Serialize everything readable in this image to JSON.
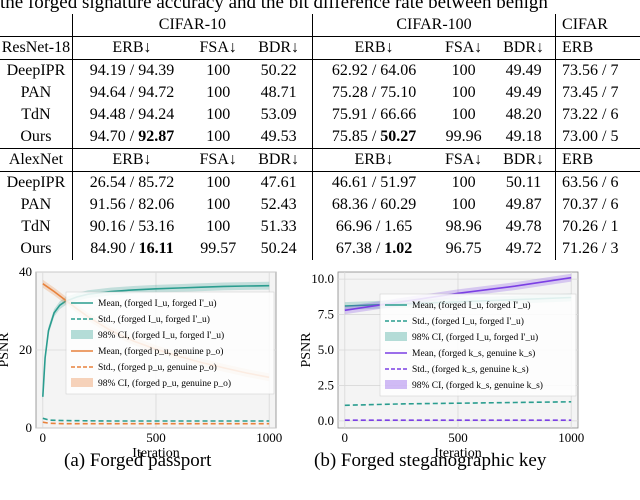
{
  "top_caption": "the forged signature accuracy and the bit difference rate between benign",
  "table": {
    "datasets": [
      "CIFAR-10",
      "CIFAR-100",
      "CIFAR"
    ],
    "sections": [
      {
        "model": "ResNet-18",
        "headers": [
          "ERB↓",
          "FSA↓",
          "BDR↓",
          "ERB↓",
          "FSA↓",
          "BDR↓",
          "ERB"
        ],
        "rows": [
          {
            "method": "DeepIPR",
            "c10_erb_a": "94.19 / ",
            "c10_erb_b": "94.39",
            "c10_fsa": "100",
            "c10_bdr": "50.22",
            "c100_erb_a": "62.92 / ",
            "c100_erb_b": "64.06",
            "c100_fsa": "100",
            "c100_bdr": "49.49",
            "c3": "73.56 / 7"
          },
          {
            "method": "PAN",
            "c10_erb_a": "94.64 / ",
            "c10_erb_b": "94.72",
            "c10_fsa": "100",
            "c10_bdr": "48.71",
            "c100_erb_a": "75.28 / ",
            "c100_erb_b": "75.10",
            "c100_fsa": "100",
            "c100_bdr": "49.49",
            "c3": "73.45 / 7"
          },
          {
            "method": "TdN",
            "c10_erb_a": "94.48 / ",
            "c10_erb_b": "94.24",
            "c10_fsa": "100",
            "c10_bdr": "53.09",
            "c100_erb_a": "75.91 / ",
            "c100_erb_b": "66.66",
            "c100_fsa": "100",
            "c100_bdr": "48.20",
            "c3": "73.22 / 6"
          },
          {
            "method": "Ours",
            "c10_erb_a": "94.70 / ",
            "c10_erb_b": "92.87",
            "c10_fsa": "100",
            "c10_bdr": "49.53",
            "c100_erb_a": "75.85 / ",
            "c100_erb_b": "50.27",
            "c100_fsa": "99.96",
            "c100_bdr": "49.18",
            "c3": "73.00 / 5"
          }
        ]
      },
      {
        "model": "AlexNet",
        "headers": [
          "ERB↓",
          "FSA↓",
          "BDR↓",
          "ERB↓",
          "FSA↓",
          "BDR↓",
          "ERB"
        ],
        "rows": [
          {
            "method": "DeepIPR",
            "c10_erb_a": "26.54 / ",
            "c10_erb_b": "85.72",
            "c10_fsa": "100",
            "c10_bdr": "47.61",
            "c100_erb_a": "46.61 / ",
            "c100_erb_b": "51.97",
            "c100_fsa": "100",
            "c100_bdr": "50.11",
            "c3": "63.56 / 6"
          },
          {
            "method": "PAN",
            "c10_erb_a": "91.56 / ",
            "c10_erb_b": "82.06",
            "c10_fsa": "100",
            "c10_bdr": "52.43",
            "c100_erb_a": "68.36 / ",
            "c100_erb_b": "60.29",
            "c100_fsa": "100",
            "c100_bdr": "49.87",
            "c3": "70.37 / 6"
          },
          {
            "method": "TdN",
            "c10_erb_a": "90.16 / ",
            "c10_erb_b": "53.16",
            "c10_fsa": "100",
            "c10_bdr": "51.33",
            "c100_erb_a": "66.96 / ",
            "c100_erb_b": "1.65",
            "c100_fsa": "98.96",
            "c100_bdr": "49.78",
            "c3": "70.26 / 1"
          },
          {
            "method": "Ours",
            "c10_erb_a": "84.90 / ",
            "c10_erb_b": "16.11",
            "c10_fsa": "99.57",
            "c10_bdr": "50.24",
            "c100_erb_a": "67.38 / ",
            "c100_erb_b": "1.02",
            "c100_fsa": "96.75",
            "c100_bdr": "49.72",
            "c3": "71.26 / 3"
          }
        ]
      }
    ]
  },
  "chart_data": [
    {
      "type": "line",
      "xlabel": "Iteration",
      "ylabel": "PSNR",
      "xlim": [
        -30,
        1030
      ],
      "ylim": [
        0,
        40
      ],
      "xticks": [
        0,
        500,
        1000
      ],
      "yticks": [
        0,
        20,
        40
      ],
      "grid": true,
      "legend_position": "right",
      "series": [
        {
          "name": "Mean, (forged I_u, forged I'_u)",
          "color": "#2a9d8f",
          "style": "solid",
          "x": [
            0,
            10,
            25,
            50,
            75,
            100,
            150,
            200,
            300,
            400,
            500,
            600,
            700,
            800,
            900,
            1000
          ],
          "y": [
            8,
            18,
            25,
            29.5,
            31.5,
            32.5,
            33.6,
            34.3,
            35.0,
            35.4,
            35.7,
            35.9,
            36.1,
            36.3,
            36.4,
            36.5
          ]
        },
        {
          "name": "Std., (forged I_u, forged I'_u)",
          "color": "#2a9d8f",
          "style": "dashed",
          "x": [
            0,
            30,
            100,
            300,
            600,
            1000
          ],
          "y": [
            2.5,
            2.0,
            1.9,
            1.8,
            1.8,
            1.8
          ]
        },
        {
          "name": "98% CI, (forged I_u, forged I'_u)",
          "color": "#2a9d8f",
          "style": "band"
        },
        {
          "name": "Mean, (forged p_u, genuine p_o)",
          "color": "#e8823c",
          "style": "solid",
          "x": [
            0,
            20,
            50,
            100,
            150,
            200,
            300,
            400,
            500,
            600,
            700,
            800,
            900,
            1000
          ],
          "y": [
            37,
            36.2,
            35.0,
            32.8,
            30.6,
            28.5,
            25.0,
            22.3,
            20.2,
            18.4,
            16.8,
            15.4,
            14.1,
            13.0
          ]
        },
        {
          "name": "Std., (forged p_u, genuine p_o)",
          "color": "#e8823c",
          "style": "dashed",
          "x": [
            0,
            30,
            100,
            300,
            600,
            1000
          ],
          "y": [
            1.5,
            1.2,
            1.1,
            1.1,
            1.1,
            1.1
          ]
        },
        {
          "name": "98% CI, (forged p_u, genuine p_o)",
          "color": "#e8823c",
          "style": "band"
        }
      ]
    },
    {
      "type": "line",
      "xlabel": "Iteration",
      "ylabel": "PSNR",
      "xlim": [
        -30,
        1030
      ],
      "ylim": [
        -0.5,
        10.5
      ],
      "xticks": [
        0,
        500,
        1000
      ],
      "yticks": [
        0.0,
        2.5,
        5.0,
        7.5,
        10.0
      ],
      "grid": true,
      "legend_position": "right",
      "series": [
        {
          "name": "Mean, (forged I_u, forged I'_u)",
          "color": "#2a9d8f",
          "style": "solid",
          "x": [
            0,
            250,
            500,
            750,
            1000
          ],
          "y": [
            8.1,
            8.25,
            8.4,
            8.55,
            8.7
          ]
        },
        {
          "name": "Std., (forged I_u, forged I'_u)",
          "color": "#2a9d8f",
          "style": "dashed",
          "x": [
            0,
            250,
            500,
            750,
            1000
          ],
          "y": [
            1.1,
            1.2,
            1.25,
            1.3,
            1.35
          ]
        },
        {
          "name": "98% CI, (forged I_u, forged I'_u)",
          "color": "#2a9d8f",
          "style": "band"
        },
        {
          "name": "Mean, (forged k_s, genuine k_s)",
          "color": "#7b3fe4",
          "style": "solid",
          "x": [
            0,
            250,
            500,
            750,
            1000
          ],
          "y": [
            7.8,
            8.4,
            9.0,
            9.5,
            10.1
          ]
        },
        {
          "name": "Std., (forged k_s, genuine k_s)",
          "color": "#7b3fe4",
          "style": "dashed",
          "x": [
            0,
            1000
          ],
          "y": [
            0.05,
            0.05
          ]
        },
        {
          "name": "98% CI, (forged k_s, genuine k_s)",
          "color": "#7b3fe4",
          "style": "band"
        }
      ]
    }
  ],
  "subcaptions": {
    "left": "(a) Forged passport",
    "right": "(b) Forged steganographic key"
  }
}
